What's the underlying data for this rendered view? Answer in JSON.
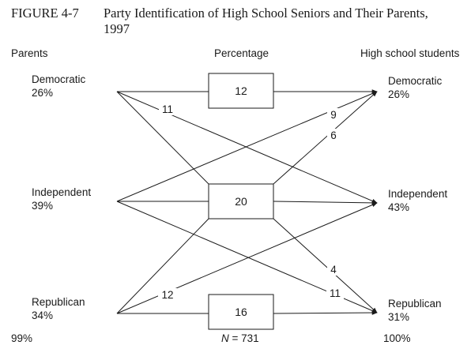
{
  "figure": {
    "label": "FIGURE 4-7",
    "title": "Party Identification of High School Seniors and Their Parents, 1997"
  },
  "columns": {
    "parents": "Parents",
    "percentage": "Percentage",
    "students": "High school students"
  },
  "parents": [
    {
      "name": "Democratic",
      "pct": "26%"
    },
    {
      "name": "Independent",
      "pct": "39%"
    },
    {
      "name": "Republican",
      "pct": "34%"
    }
  ],
  "students": [
    {
      "name": "Democratic",
      "pct": "26%"
    },
    {
      "name": "Independent",
      "pct": "43%"
    },
    {
      "name": "Republican",
      "pct": "31%"
    }
  ],
  "stable_boxes": {
    "democratic": "12",
    "independent": "20",
    "republican": "16"
  },
  "flows": {
    "dem_to_ind": "11",
    "ind_to_dem": "9",
    "ind_to_dem_alt": "6",
    "ind_to_rep": "4",
    "ind_to_rep_alt": "11",
    "rep_to_ind": "12"
  },
  "footer": {
    "parents_total": "99%",
    "n": "N = 731",
    "students_total": "100%"
  }
}
